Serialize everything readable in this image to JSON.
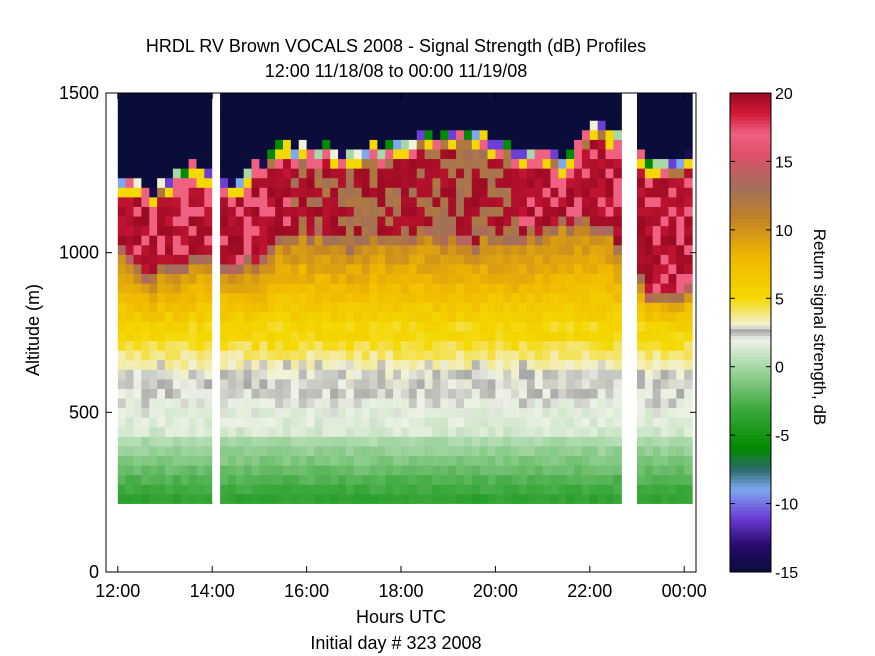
{
  "chart_data": {
    "type": "heatmap",
    "title": "HRDL RV Brown VOCALS 2008 - Signal Strength (dB) Profiles",
    "subtitle": "12:00 11/18/08 to 00:00 11/19/08",
    "xlabel": "Hours UTC",
    "xlabel2": "Initial day # 323  2008",
    "ylabel": "Altitude (m)",
    "colorbar_label": "Return signal strength, dB",
    "x_ticks": [
      "12:00",
      "14:00",
      "16:00",
      "18:00",
      "20:00",
      "22:00",
      "00:00"
    ],
    "y_ticks": [
      "0",
      "500",
      "1000",
      "1500"
    ],
    "y_lim": [
      0,
      1500
    ],
    "colorbar_ticks": [
      "20",
      "15",
      "10",
      "5",
      "0",
      "-5",
      "-10",
      "-15"
    ],
    "colorbar_range": [
      -15,
      20
    ],
    "data_altitude_range_m": [
      215,
      1500
    ],
    "profile_interval_min": 10,
    "profile_start_hour": 12.0,
    "data_gaps_hours": [
      [
        14.0,
        14.1
      ],
      [
        22.7,
        23.0
      ]
    ],
    "profiles": {
      "hours": [
        12.1,
        12.6,
        13.1,
        13.6,
        14.3,
        14.8,
        15.3,
        15.8,
        16.3,
        16.8,
        17.3,
        17.8,
        18.3,
        18.8,
        19.3,
        19.8,
        20.3,
        20.8,
        21.3,
        21.8,
        22.3,
        23.1,
        23.6,
        24.0
      ],
      "cloud_top_m": [
        1220,
        1180,
        1240,
        1260,
        1210,
        1260,
        1330,
        1320,
        1330,
        1310,
        1330,
        1340,
        1340,
        1360,
        1360,
        1340,
        1320,
        1330,
        1290,
        1370,
        1400,
        1300,
        1270,
        1300
      ],
      "cloud_base_m": [
        1010,
        930,
        970,
        990,
        960,
        970,
        1050,
        1070,
        1060,
        1050,
        1060,
        1050,
        1060,
        1060,
        1050,
        1060,
        1060,
        1060,
        1110,
        1110,
        1100,
        900,
        890,
        880
      ]
    },
    "colormap": [
      {
        "v": -15,
        "c": "#0a0c3a"
      },
      {
        "v": -13,
        "c": "#2a0a6e"
      },
      {
        "v": -11,
        "c": "#6b3fd6"
      },
      {
        "v": -9,
        "c": "#7fa8f0"
      },
      {
        "v": -7.5,
        "c": "#2c6a6a"
      },
      {
        "v": -6,
        "c": "#008a00"
      },
      {
        "v": -3,
        "c": "#3faa3f"
      },
      {
        "v": 0,
        "c": "#a8d8a8"
      },
      {
        "v": 2,
        "c": "#eef2e6"
      },
      {
        "v": 2.6,
        "c": "#a8a8a8"
      },
      {
        "v": 3,
        "c": "#f2f2da"
      },
      {
        "v": 5,
        "c": "#f5d800"
      },
      {
        "v": 8,
        "c": "#f0b800"
      },
      {
        "v": 11,
        "c": "#c08028"
      },
      {
        "v": 13,
        "c": "#a0705a"
      },
      {
        "v": 15.5,
        "c": "#e0506a"
      },
      {
        "v": 17,
        "c": "#f06080"
      },
      {
        "v": 18.5,
        "c": "#d01838"
      },
      {
        "v": 20,
        "c": "#9a0a22"
      }
    ]
  }
}
